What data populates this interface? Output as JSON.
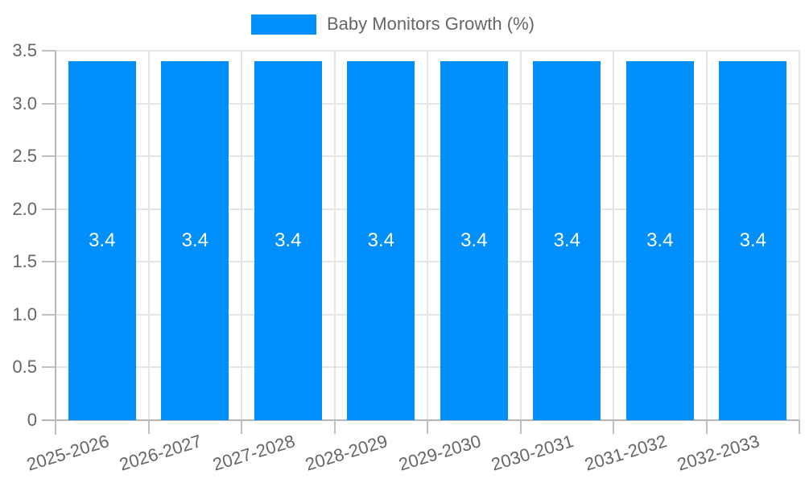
{
  "chart_data": {
    "type": "bar",
    "legend_position": "top",
    "series": [
      {
        "name": "Baby Monitors Growth (%)",
        "values": [
          3.4,
          3.4,
          3.4,
          3.4,
          3.4,
          3.4,
          3.4,
          3.4
        ],
        "value_labels": [
          "3.4",
          "3.4",
          "3.4",
          "3.4",
          "3.4",
          "3.4",
          "3.4",
          "3.4"
        ],
        "color": "#008FFB"
      }
    ],
    "categories": [
      "2025-2026",
      "2026-2027",
      "2027-2028",
      "2028-2029",
      "2029-2030",
      "2030-2031",
      "2031-2032",
      "2032-2033"
    ],
    "xlabel": "",
    "ylabel": "",
    "ylim": [
      0,
      3.5
    ],
    "y_ticks": [
      "0",
      "0.5",
      "1.0",
      "1.5",
      "2.0",
      "2.5",
      "3.0",
      "3.5"
    ],
    "grid": "horizontal-and-vertical",
    "colors": {
      "bar": "#008FFB",
      "axis_text": "#666666",
      "grid_line": "#e5e5e5",
      "axis_line": "#b6b6b6",
      "tick_line": "#c0c0c0",
      "value_label_text": "#ffffff",
      "background": "#ffffff"
    }
  }
}
